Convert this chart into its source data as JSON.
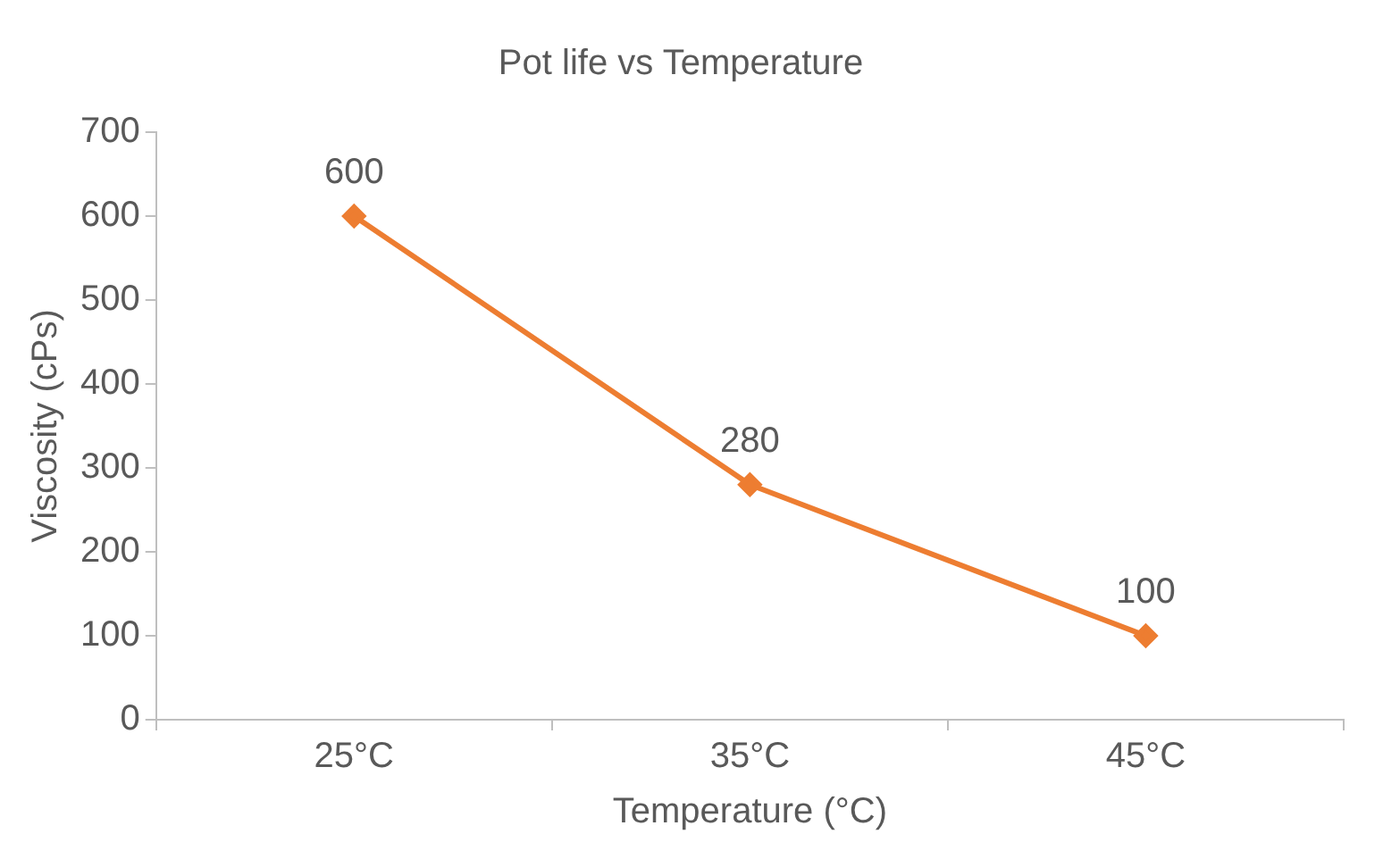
{
  "chart_data": {
    "type": "line",
    "title": "Pot life vs Temperature",
    "xlabel": "Temperature (°C)",
    "ylabel": "Viscosity (cPs)",
    "categories": [
      "25°C",
      "35°C",
      "45°C"
    ],
    "series": [
      {
        "color": "#ed7d31",
        "values": [
          600,
          280,
          100
        ]
      }
    ],
    "ylim": [
      0,
      700
    ],
    "yticks": [
      0,
      100,
      200,
      300,
      400,
      500,
      600,
      700
    ],
    "grid": false,
    "legend": false,
    "marker": "diamond",
    "line_style": "solid",
    "data_labels": true
  }
}
